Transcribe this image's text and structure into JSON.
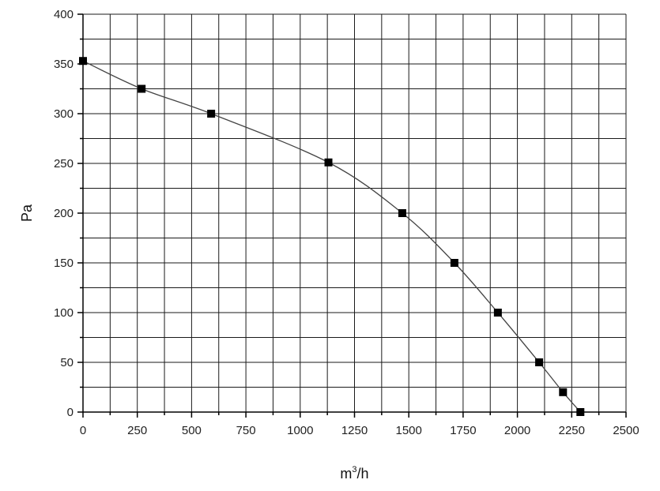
{
  "chart_data": {
    "type": "line",
    "title": "",
    "xlabel": {
      "main": "m",
      "sup": "3",
      "suffix": "/h"
    },
    "ylabel": "Pa",
    "xlim": [
      0,
      2500
    ],
    "ylim": [
      0,
      400
    ],
    "x_ticks": [
      0,
      250,
      500,
      750,
      1000,
      1250,
      1500,
      1750,
      2000,
      2250,
      2500
    ],
    "y_ticks": [
      0,
      50,
      100,
      150,
      200,
      250,
      300,
      350,
      400
    ],
    "x_grid_step": 125,
    "y_grid_step": 25,
    "grid": true,
    "series": [
      {
        "x": [
          0,
          270,
          590,
          1130,
          1470,
          1710,
          1910,
          2100,
          2210,
          2290
        ],
        "y": [
          353,
          325,
          300,
          251,
          200,
          150,
          100,
          50,
          20,
          0
        ],
        "marker": "square",
        "color": "#000000"
      }
    ]
  }
}
